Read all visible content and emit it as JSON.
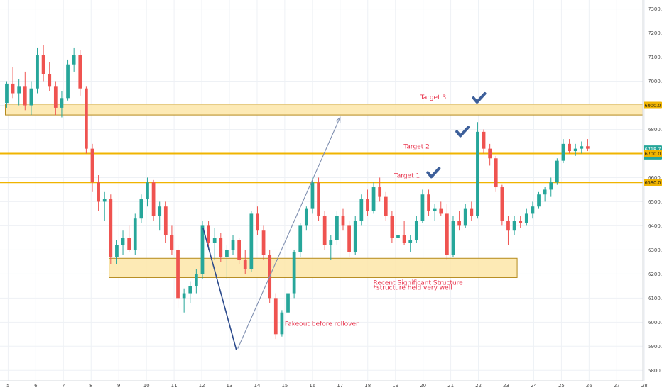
{
  "chart_data": {
    "type": "candlestick",
    "grid": true,
    "colors": {
      "up": "#26a69a",
      "down": "#ef5350",
      "zone_fill": "#fde6a8",
      "zone_border": "#b58a1c",
      "hline": "#f0b400",
      "drawing_line": "#2b4a8c",
      "arrow_line": "#7f8fb0",
      "annotation_text": "#e8314a",
      "checkmark": "#3d5f9a",
      "last_price_tag": "#26a69a",
      "grid": "#eef1f5",
      "axis_text": "#4a4a4a"
    },
    "x_axis": {
      "ticks": [
        "5",
        "6",
        "7",
        "8",
        "9",
        "10",
        "11",
        "12",
        "13",
        "14",
        "15",
        "16",
        "17",
        "18",
        "19",
        "20",
        "21",
        "22",
        "23",
        "24",
        "25",
        "26",
        "27",
        "28"
      ]
    },
    "y_axis": {
      "ylim": [
        5800,
        7350
      ],
      "ticks": [
        "7300.0",
        "7200.0",
        "7100.0",
        "7000.0",
        "6900.0",
        "6800.0",
        "6700.0",
        "6600.0",
        "6500.0",
        "6400.0",
        "6300.0",
        "6200.0",
        "6100.0",
        "6000.0",
        "5900.0",
        "5800.0"
      ]
    },
    "price_tags": [
      {
        "label": "6900.0",
        "value": 6900,
        "style": "level"
      },
      {
        "label": "6718.7",
        "value": 6718.7,
        "style": "last"
      },
      {
        "label": "59:54",
        "value": 6690,
        "style": "countdown"
      },
      {
        "label": "6700.0",
        "value": 6700,
        "style": "level"
      },
      {
        "label": "6580.0",
        "value": 6580,
        "style": "level"
      }
    ],
    "zones": [
      {
        "name": "upper-zone",
        "x_from": 4.9,
        "x_to": 28.3,
        "y_from": 6860,
        "y_to": 6905
      },
      {
        "name": "structure-zone",
        "x_from": 8.65,
        "x_to": 23.4,
        "y_from": 6185,
        "y_to": 6265
      }
    ],
    "hlines": [
      {
        "value": 6700
      },
      {
        "value": 6580
      }
    ],
    "annotations": [
      {
        "text": "Target 3",
        "x": 19.9,
        "y": 6925
      },
      {
        "text": "Target 2",
        "x": 19.3,
        "y": 6720
      },
      {
        "text": "Target 1",
        "x": 18.95,
        "y": 6600
      },
      {
        "text": "Recent Significant Structure",
        "x": 18.2,
        "y": 6155
      },
      {
        "text": "*structure held very well",
        "x": 18.2,
        "y": 6135
      },
      {
        "text": "Fakeout before rollover",
        "x": 15.0,
        "y": 5985
      }
    ],
    "checkmarks": [
      {
        "x": 22.0,
        "y": 6925
      },
      {
        "x": 21.4,
        "y": 6785
      },
      {
        "x": 20.35,
        "y": 6615
      }
    ],
    "drawings": {
      "zigzag": [
        [
          12.05,
          6390
        ],
        [
          13.25,
          5885
        ]
      ],
      "arrow": [
        [
          13.3,
          5890
        ],
        [
          17.0,
          6850
        ]
      ]
    },
    "ohlc": [
      [
        6910,
        7000,
        6890,
        6990
      ],
      [
        6990,
        7060,
        6930,
        6950
      ],
      [
        6950,
        7010,
        6900,
        6980
      ],
      [
        6980,
        7040,
        6880,
        6900
      ],
      [
        6900,
        7000,
        6860,
        6970
      ],
      [
        6970,
        7140,
        6950,
        7110
      ],
      [
        7110,
        7150,
        7000,
        7030
      ],
      [
        7030,
        7080,
        6960,
        6980
      ],
      [
        6980,
        7000,
        6860,
        6890
      ],
      [
        6890,
        6960,
        6850,
        6930
      ],
      [
        6930,
        7090,
        6920,
        7070
      ],
      [
        7070,
        7140,
        7040,
        7110
      ],
      [
        7110,
        7130,
        6940,
        6970
      ],
      [
        6970,
        6980,
        6700,
        6720
      ],
      [
        6720,
        6740,
        6540,
        6580
      ],
      [
        6580,
        6610,
        6460,
        6500
      ],
      [
        6500,
        6540,
        6420,
        6510
      ],
      [
        6510,
        6530,
        6240,
        6270
      ],
      [
        6270,
        6340,
        6240,
        6320
      ],
      [
        6320,
        6380,
        6280,
        6350
      ],
      [
        6350,
        6400,
        6290,
        6300
      ],
      [
        6300,
        6450,
        6280,
        6430
      ],
      [
        6430,
        6530,
        6410,
        6510
      ],
      [
        6510,
        6600,
        6480,
        6580
      ],
      [
        6580,
        6590,
        6420,
        6440
      ],
      [
        6440,
        6500,
        6380,
        6480
      ],
      [
        6480,
        6500,
        6330,
        6360
      ],
      [
        6360,
        6400,
        6280,
        6300
      ],
      [
        6300,
        6320,
        6060,
        6100
      ],
      [
        6100,
        6140,
        6040,
        6120
      ],
      [
        6120,
        6170,
        6080,
        6150
      ],
      [
        6150,
        6220,
        6120,
        6200
      ],
      [
        6200,
        6420,
        6180,
        6400
      ],
      [
        6400,
        6420,
        6300,
        6330
      ],
      [
        6330,
        6390,
        6260,
        6350
      ],
      [
        6350,
        6370,
        6250,
        6270
      ],
      [
        6270,
        6320,
        6180,
        6300
      ],
      [
        6300,
        6360,
        6280,
        6340
      ],
      [
        6340,
        6350,
        6240,
        6260
      ],
      [
        6260,
        6300,
        6200,
        6220
      ],
      [
        6220,
        6460,
        6210,
        6450
      ],
      [
        6450,
        6480,
        6360,
        6380
      ],
      [
        6380,
        6400,
        6260,
        6280
      ],
      [
        6280,
        6300,
        6080,
        6100
      ],
      [
        6100,
        6120,
        5930,
        5950
      ],
      [
        5950,
        6050,
        5940,
        6040
      ],
      [
        6040,
        6140,
        6020,
        6120
      ],
      [
        6120,
        6300,
        6100,
        6290
      ],
      [
        6290,
        6410,
        6270,
        6400
      ],
      [
        6400,
        6480,
        6380,
        6470
      ],
      [
        6470,
        6600,
        6450,
        6580
      ],
      [
        6580,
        6600,
        6420,
        6440
      ],
      [
        6440,
        6460,
        6300,
        6320
      ],
      [
        6320,
        6360,
        6260,
        6340
      ],
      [
        6340,
        6460,
        6320,
        6440
      ],
      [
        6440,
        6470,
        6380,
        6400
      ],
      [
        6400,
        6420,
        6270,
        6290
      ],
      [
        6290,
        6440,
        6280,
        6420
      ],
      [
        6420,
        6530,
        6400,
        6510
      ],
      [
        6510,
        6550,
        6440,
        6460
      ],
      [
        6460,
        6580,
        6450,
        6560
      ],
      [
        6560,
        6600,
        6500,
        6520
      ],
      [
        6520,
        6540,
        6420,
        6440
      ],
      [
        6440,
        6460,
        6330,
        6350
      ],
      [
        6350,
        6390,
        6300,
        6360
      ],
      [
        6360,
        6420,
        6320,
        6330
      ],
      [
        6330,
        6360,
        6290,
        6340
      ],
      [
        6340,
        6440,
        6330,
        6420
      ],
      [
        6420,
        6550,
        6410,
        6530
      ],
      [
        6530,
        6550,
        6440,
        6460
      ],
      [
        6460,
        6490,
        6420,
        6470
      ],
      [
        6470,
        6500,
        6440,
        6450
      ],
      [
        6450,
        6490,
        6260,
        6280
      ],
      [
        6280,
        6440,
        6270,
        6420
      ],
      [
        6420,
        6460,
        6380,
        6400
      ],
      [
        6400,
        6490,
        6390,
        6470
      ],
      [
        6470,
        6500,
        6420,
        6440
      ],
      [
        6440,
        6830,
        6430,
        6790
      ],
      [
        6790,
        6800,
        6700,
        6720
      ],
      [
        6720,
        6740,
        6650,
        6680
      ],
      [
        6680,
        6690,
        6540,
        6560
      ],
      [
        6560,
        6570,
        6400,
        6420
      ],
      [
        6420,
        6440,
        6320,
        6380
      ],
      [
        6380,
        6440,
        6360,
        6420
      ],
      [
        6420,
        6440,
        6390,
        6410
      ],
      [
        6410,
        6470,
        6400,
        6450
      ],
      [
        6450,
        6500,
        6430,
        6480
      ],
      [
        6480,
        6540,
        6470,
        6530
      ],
      [
        6530,
        6560,
        6500,
        6550
      ],
      [
        6550,
        6600,
        6520,
        6580
      ],
      [
        6580,
        6680,
        6570,
        6670
      ],
      [
        6670,
        6760,
        6660,
        6740
      ],
      [
        6740,
        6760,
        6700,
        6710
      ],
      [
        6710,
        6740,
        6690,
        6720
      ],
      [
        6720,
        6750,
        6700,
        6730
      ],
      [
        6730,
        6760,
        6710,
        6720
      ]
    ]
  }
}
